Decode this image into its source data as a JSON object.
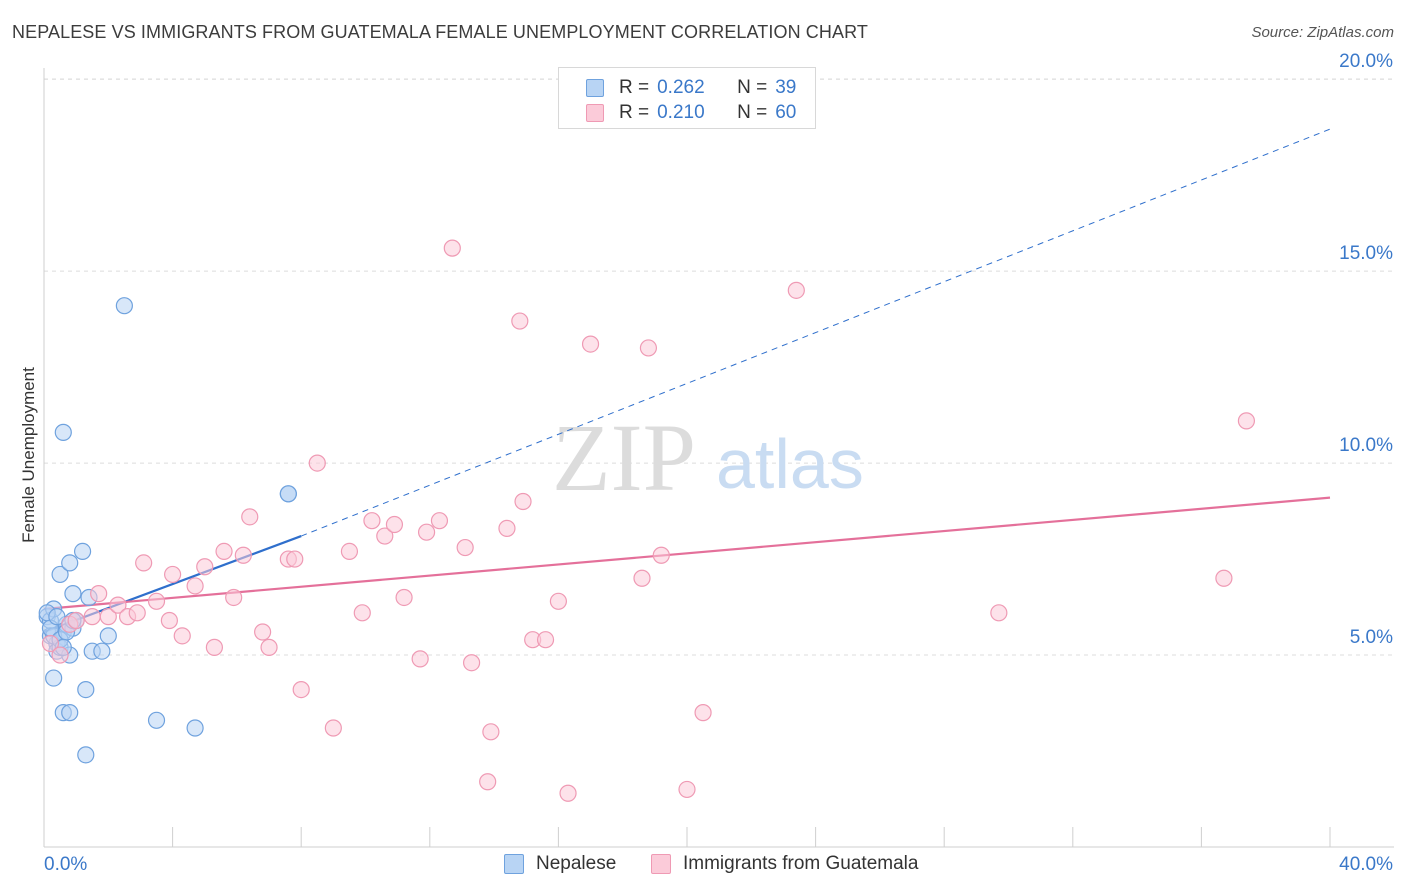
{
  "title": "NEPALESE VS IMMIGRANTS FROM GUATEMALA FEMALE UNEMPLOYMENT CORRELATION CHART",
  "source": "Source: ZipAtlas.com",
  "watermark": {
    "zip": "ZIP",
    "atlas": "atlas"
  },
  "legend": {
    "r_label": "R =",
    "n_label": "N =",
    "rows": [
      {
        "name": "Nepalese",
        "r": "0.262",
        "n": "39",
        "fill": "#b8d4f4",
        "stroke": "#6fa2de"
      },
      {
        "name": "Immigrants from Guatemala",
        "r": "0.210",
        "n": "60",
        "fill": "#fbcbd9",
        "stroke": "#ef9ab4"
      }
    ]
  },
  "chart_data": {
    "type": "scatter",
    "title": "NEPALESE VS IMMIGRANTS FROM GUATEMALA FEMALE UNEMPLOYMENT CORRELATION CHART",
    "xlabel": "",
    "ylabel": "Female Unemployment",
    "xlim": [
      0,
      40
    ],
    "ylim": [
      0,
      20.5
    ],
    "x_tick_labels": [
      "0.0%",
      "40.0%"
    ],
    "y_ticks": [
      5,
      10,
      15,
      20
    ],
    "y_tick_labels": [
      "5.0%",
      "10.0%",
      "15.0%",
      "20.0%"
    ],
    "grid": true,
    "legend_position": "top-center",
    "series": [
      {
        "name": "Nepalese",
        "color": "#6fa2de",
        "fill": "#b8d4f4",
        "trend_color": "#2f6fcc",
        "trend": {
          "x0": 0,
          "y0": 5.6,
          "x1": 8,
          "y1": 8.1,
          "dashed_to_x": 40,
          "dashed_to_y": 18.7
        },
        "points": [
          [
            0.1,
            6.0
          ],
          [
            0.2,
            5.9
          ],
          [
            0.2,
            5.5
          ],
          [
            0.3,
            6.2
          ],
          [
            0.4,
            5.3
          ],
          [
            0.4,
            5.1
          ],
          [
            0.5,
            5.2
          ],
          [
            0.6,
            5.6
          ],
          [
            0.7,
            5.8
          ],
          [
            0.8,
            5.0
          ],
          [
            0.9,
            5.7
          ],
          [
            0.3,
            4.4
          ],
          [
            0.5,
            7.1
          ],
          [
            0.8,
            7.4
          ],
          [
            0.9,
            6.6
          ],
          [
            1.0,
            5.9
          ],
          [
            1.2,
            7.7
          ],
          [
            1.4,
            6.5
          ],
          [
            1.5,
            5.1
          ],
          [
            1.8,
            5.1
          ],
          [
            2.0,
            5.5
          ],
          [
            0.6,
            10.8
          ],
          [
            2.5,
            14.1
          ],
          [
            7.6,
            9.2
          ],
          [
            7.6,
            9.2
          ],
          [
            1.3,
            4.1
          ],
          [
            0.6,
            3.5
          ],
          [
            0.8,
            3.5
          ],
          [
            1.3,
            2.4
          ],
          [
            3.5,
            3.3
          ],
          [
            4.7,
            3.1
          ],
          [
            0.3,
            5.5
          ],
          [
            0.1,
            6.1
          ],
          [
            0.2,
            5.7
          ],
          [
            0.5,
            5.4
          ],
          [
            0.7,
            5.6
          ],
          [
            0.9,
            5.9
          ],
          [
            0.4,
            6.0
          ],
          [
            0.6,
            5.2
          ]
        ]
      },
      {
        "name": "Immigrants from Guatemala",
        "color": "#ef9ab4",
        "fill": "#fbcbd9",
        "trend_color": "#e4709a",
        "trend": {
          "x0": 0,
          "y0": 6.2,
          "x1": 40,
          "y1": 9.1
        },
        "points": [
          [
            0.2,
            5.3
          ],
          [
            0.5,
            5.0
          ],
          [
            0.8,
            5.8
          ],
          [
            1.0,
            5.9
          ],
          [
            1.5,
            6.0
          ],
          [
            1.7,
            6.6
          ],
          [
            2.0,
            6.0
          ],
          [
            2.3,
            6.3
          ],
          [
            2.6,
            6.0
          ],
          [
            2.9,
            6.1
          ],
          [
            3.1,
            7.4
          ],
          [
            3.5,
            6.4
          ],
          [
            3.9,
            5.9
          ],
          [
            4.0,
            7.1
          ],
          [
            4.3,
            5.5
          ],
          [
            4.7,
            6.8
          ],
          [
            5.0,
            7.3
          ],
          [
            5.3,
            5.2
          ],
          [
            5.6,
            7.7
          ],
          [
            5.9,
            6.5
          ],
          [
            6.2,
            7.6
          ],
          [
            6.4,
            8.6
          ],
          [
            6.8,
            5.6
          ],
          [
            7.0,
            5.2
          ],
          [
            7.6,
            7.5
          ],
          [
            7.8,
            7.5
          ],
          [
            8.0,
            4.1
          ],
          [
            8.5,
            10.0
          ],
          [
            9.0,
            3.1
          ],
          [
            9.5,
            7.7
          ],
          [
            9.9,
            6.1
          ],
          [
            10.2,
            8.5
          ],
          [
            10.6,
            8.1
          ],
          [
            10.9,
            8.4
          ],
          [
            11.2,
            6.5
          ],
          [
            11.7,
            4.9
          ],
          [
            11.9,
            8.2
          ],
          [
            12.3,
            8.5
          ],
          [
            12.7,
            15.6
          ],
          [
            13.1,
            7.8
          ],
          [
            13.3,
            4.8
          ],
          [
            13.8,
            1.7
          ],
          [
            13.9,
            3.0
          ],
          [
            14.4,
            8.3
          ],
          [
            14.8,
            13.7
          ],
          [
            14.9,
            9.0
          ],
          [
            15.2,
            5.4
          ],
          [
            15.6,
            5.4
          ],
          [
            16.0,
            6.4
          ],
          [
            16.3,
            1.4
          ],
          [
            17.0,
            13.1
          ],
          [
            18.6,
            7.0
          ],
          [
            18.8,
            13.0
          ],
          [
            19.2,
            7.6
          ],
          [
            20.0,
            1.5
          ],
          [
            20.5,
            3.5
          ],
          [
            23.4,
            14.5
          ],
          [
            29.7,
            6.1
          ],
          [
            36.7,
            7.0
          ],
          [
            37.4,
            11.1
          ]
        ]
      }
    ]
  }
}
